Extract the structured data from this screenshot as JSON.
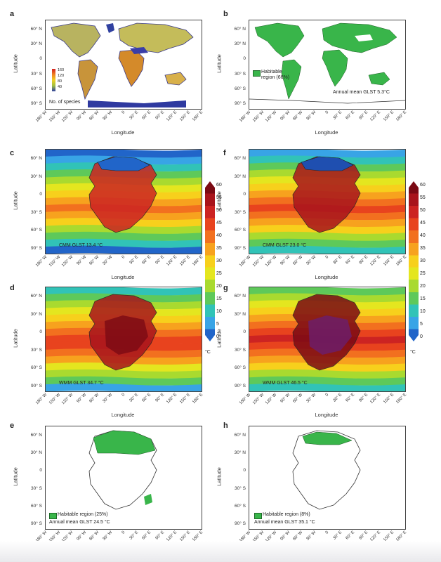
{
  "axes": {
    "xlabel": "Longitude",
    "ylabel": "Latitude",
    "lat_ticks": [
      "60° N",
      "30° N",
      "0",
      "30° S",
      "60° S",
      "90° S"
    ],
    "lon_ticks": [
      "180° W",
      "150° W",
      "120° W",
      "90° W",
      "60° W",
      "30° W",
      "0",
      "30° E",
      "60° E",
      "90° E",
      "120° E",
      "150° E",
      "180° E"
    ]
  },
  "panels": {
    "a": {
      "letter": "a",
      "legend_title": "No. of species",
      "legend_ticks": [
        "160",
        "120",
        "80",
        "40"
      ]
    },
    "b": {
      "letter": "b",
      "legend_label": "Habitable region (66%)",
      "annotation": "Annual mean GLST 5.3°C"
    },
    "c": {
      "letter": "c",
      "annotation": "CMM GLST 13.4 °C"
    },
    "f": {
      "letter": "f",
      "annotation": "CMM GLST 23.0 °C"
    },
    "d": {
      "letter": "d",
      "annotation": "WMM GLST 34.7 °C"
    },
    "g": {
      "letter": "g",
      "annotation": "WMM GLST 46.5 °C"
    },
    "e": {
      "letter": "e",
      "legend_label": "Habitable region (25%)",
      "annotation": "Annual mean GLST 24.5 °C"
    },
    "h": {
      "letter": "h",
      "legend_label": "Habitable region (8%)",
      "annotation": "Annual mean GLST 35.1 °C"
    }
  },
  "colorbar": {
    "ticks": [
      "60",
      "55",
      "50",
      "45",
      "40",
      "35",
      "30",
      "25",
      "20",
      "15",
      "10",
      "5",
      "0"
    ],
    "unit": "°C",
    "colors": [
      "#7b0a14",
      "#a8141c",
      "#cc2322",
      "#e8431e",
      "#f2701f",
      "#f7a21e",
      "#f7d01c",
      "#e4e61f",
      "#a9da2f",
      "#5ec95a",
      "#31c3b7",
      "#38a4e6",
      "#2165c9"
    ]
  },
  "colors": {
    "habitable": "#39b54a",
    "land_outline": "#333333"
  }
}
